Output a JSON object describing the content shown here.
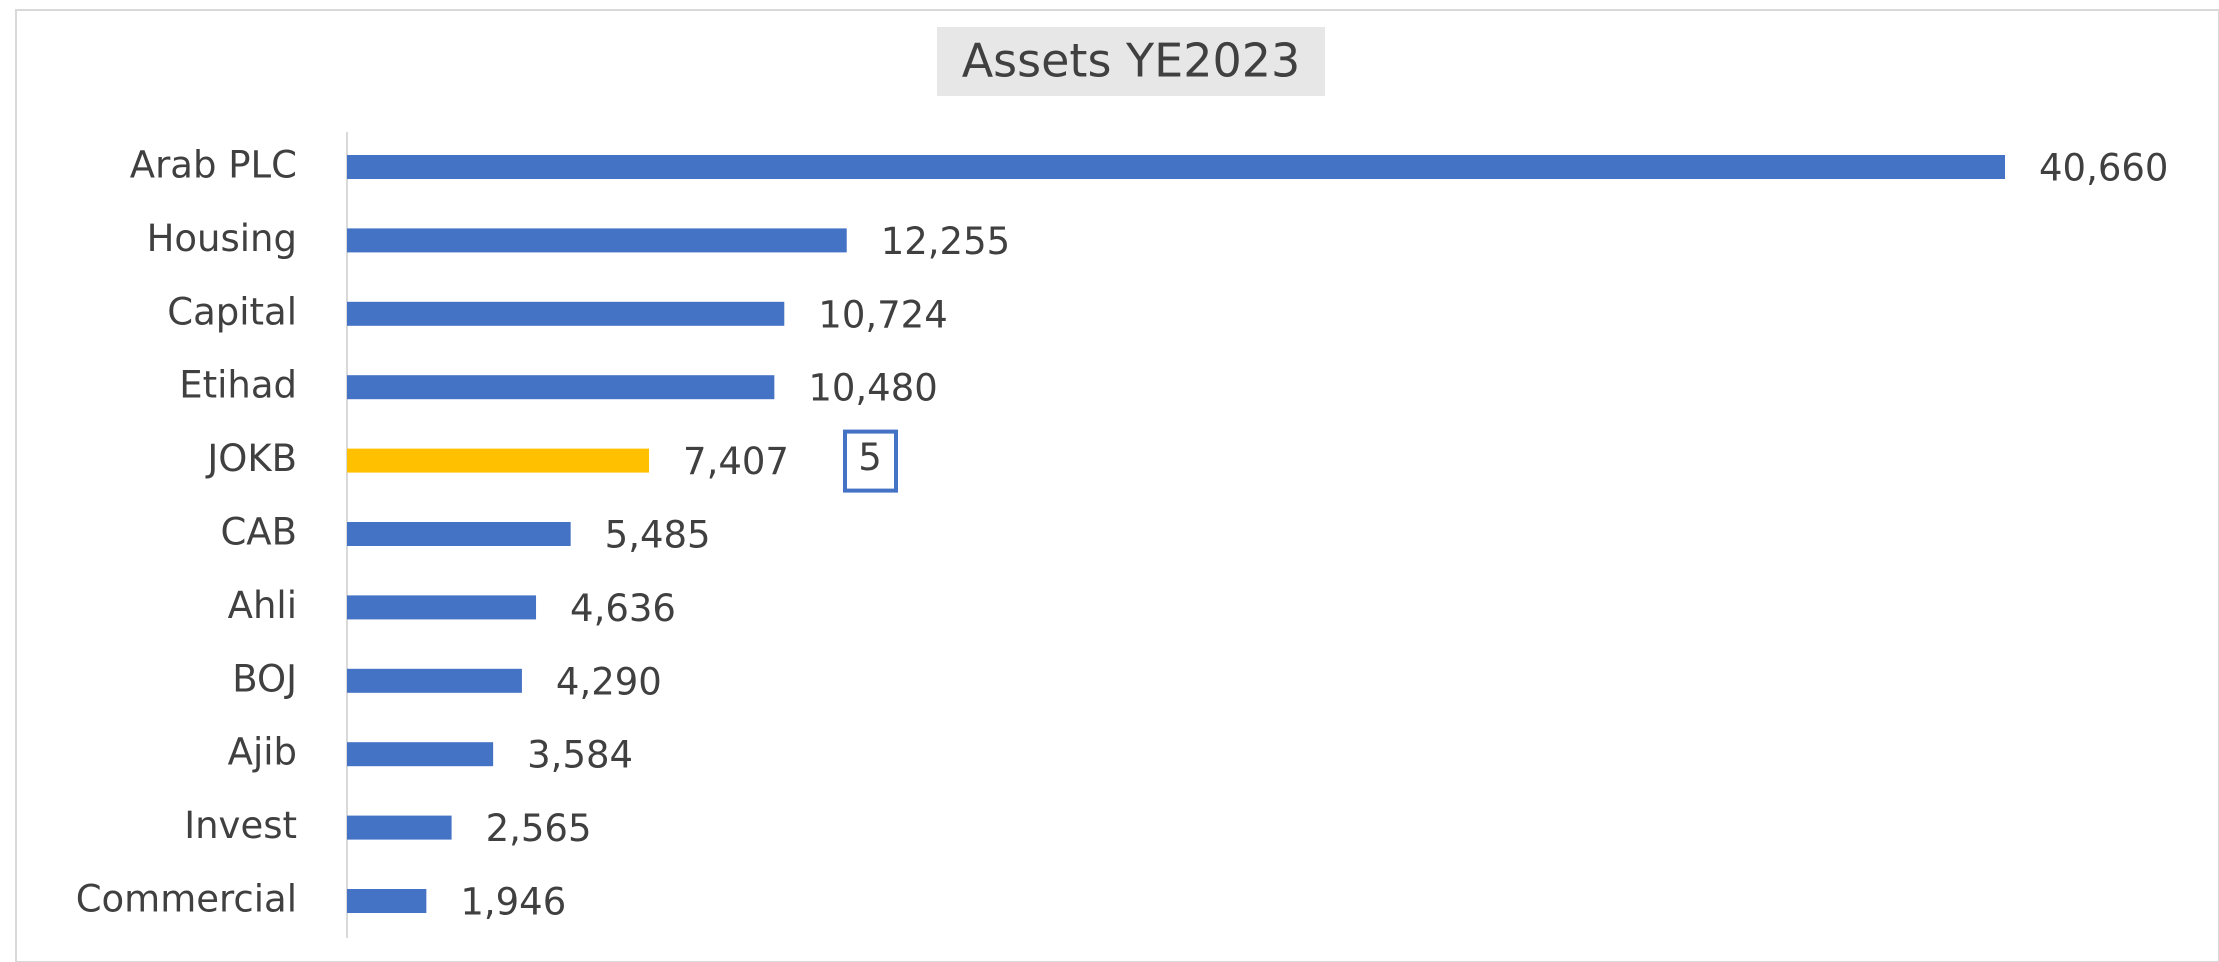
{
  "chart_data": {
    "type": "bar",
    "orientation": "horizontal",
    "title": "Assets YE2023",
    "categories": [
      "Arab PLC",
      "Housing",
      "Capital",
      "Etihad",
      "JOKB",
      "CAB",
      "Ahli",
      "BOJ",
      "Ajib",
      "Invest",
      "Commercial"
    ],
    "values": [
      40660,
      12255,
      10724,
      10480,
      7407,
      5485,
      4636,
      4290,
      3584,
      2565,
      1946
    ],
    "value_labels": [
      "40,660",
      "12,255",
      "10,724",
      "10,480",
      "7,407",
      "5,485",
      "4,636",
      "4,290",
      "3,584",
      "2,565",
      "1,946"
    ],
    "colors": [
      "#4472c4",
      "#4472c4",
      "#4472c4",
      "#4472c4",
      "#ffc000",
      "#4472c4",
      "#4472c4",
      "#4472c4",
      "#4472c4",
      "#4472c4",
      "#4472c4"
    ],
    "annotation": "5"
  }
}
